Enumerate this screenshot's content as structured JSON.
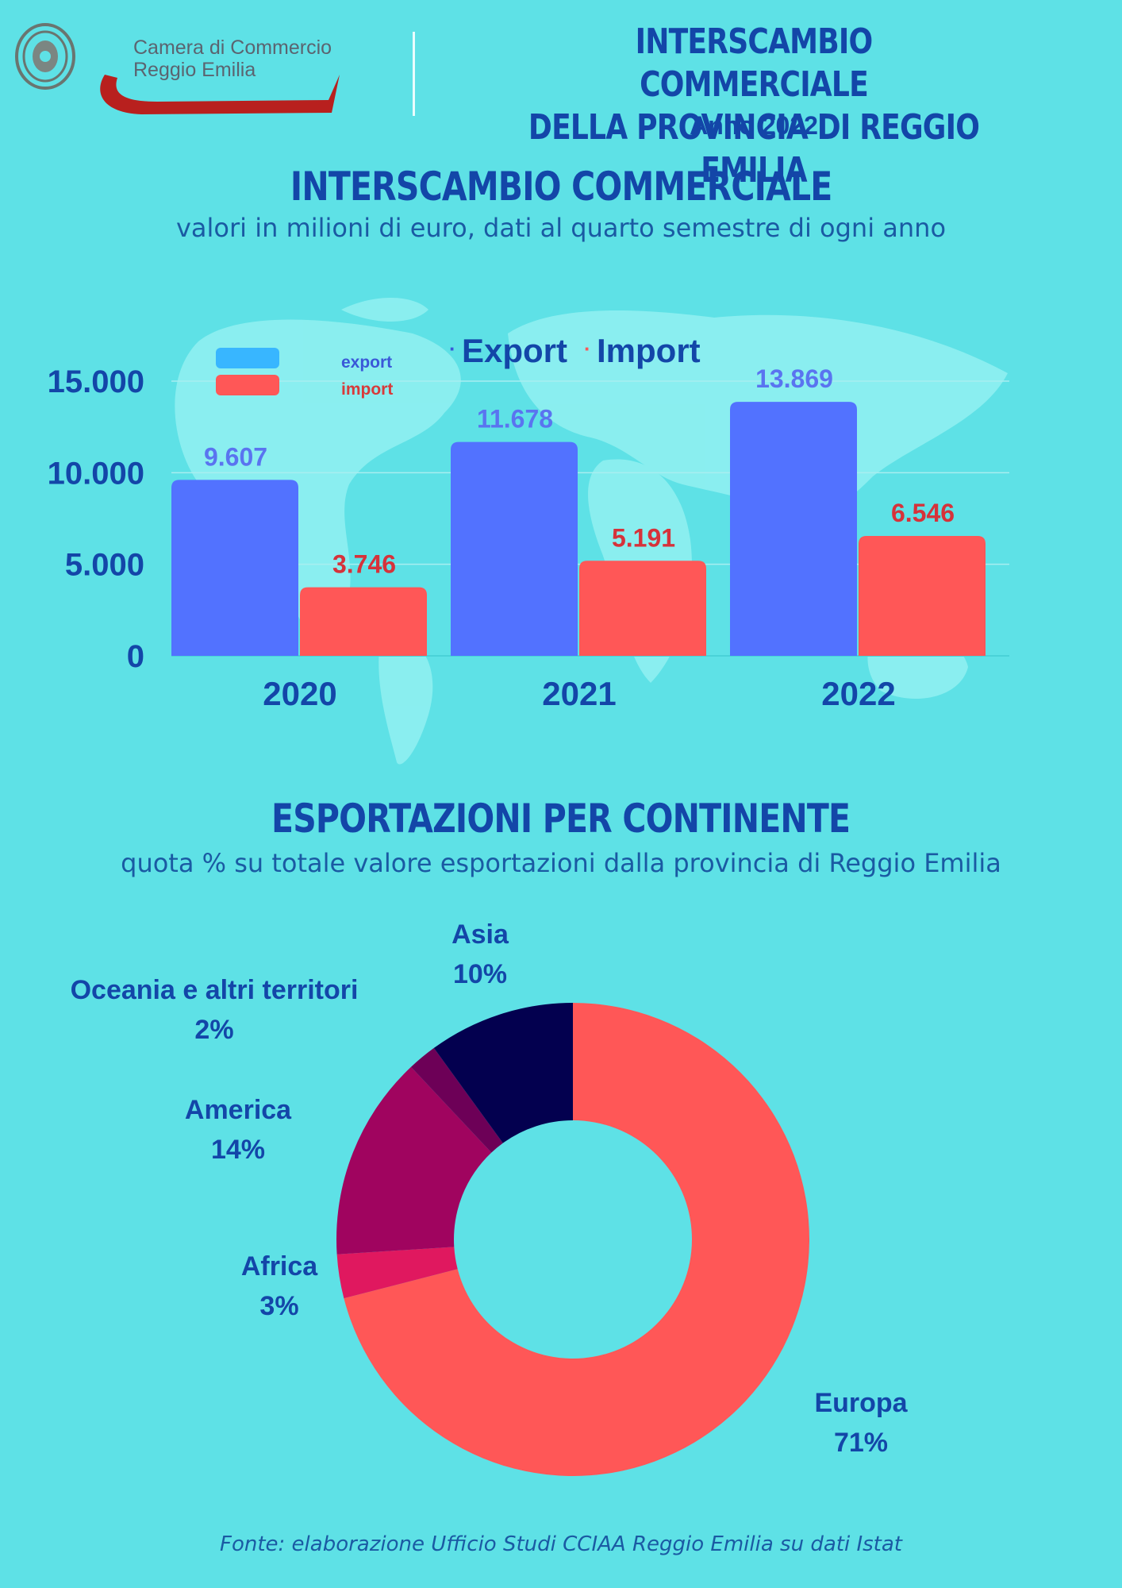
{
  "header": {
    "logo_line1": "Camera di Commercio",
    "logo_line2": "Reggio Emilia",
    "title_line1": "INTERSCAMBIO COMMERCIALE",
    "title_line2": "DELLA PROVINCIA DI REGGIO EMILIA",
    "year": "Anno 2022"
  },
  "section1": {
    "title": "INTERSCAMBIO COMMERCIALE",
    "subtitle": "valori in milioni di euro, dati al quarto semestre di ogni anno"
  },
  "section2": {
    "title": "ESPORTAZIONI PER CONTINENTE",
    "subtitle": "quota % su totale valore esportazioni dalla provincia di Reggio Emilia"
  },
  "footer": "Fonte: elaborazione Ufficio Studi CCIAA Reggio Emilia su dati Istat",
  "colors": {
    "background": "#5ee1e6",
    "export": "#5272ff",
    "import": "#ff5757",
    "text_dark": "#1346a8"
  },
  "chart_data": [
    {
      "type": "bar",
      "categories": [
        "2020",
        "2021",
        "2022"
      ],
      "series": [
        {
          "name": "Export",
          "values": [
            9607,
            11678,
            13869
          ],
          "labels": [
            "9.607",
            "11.678",
            "13.869"
          ],
          "color": "#5272ff"
        },
        {
          "name": "Import",
          "values": [
            3746,
            5191,
            6546
          ],
          "labels": [
            "3.746",
            "5.191",
            "6.546"
          ],
          "color": "#ff5757"
        }
      ],
      "legend_small": [
        "export",
        "import"
      ],
      "legend_title": [
        "Export",
        "Import"
      ],
      "ylim": [
        0,
        15000
      ],
      "yticks": [
        0,
        5000,
        10000,
        15000
      ],
      "ytick_labels": [
        "0",
        "5.000",
        "10.000",
        "15.000"
      ],
      "grid": true
    },
    {
      "type": "pie",
      "slices": [
        {
          "name": "Europa",
          "value": 71,
          "label": "71%",
          "color": "#ff5757"
        },
        {
          "name": "Africa",
          "value": 3,
          "label": "3%",
          "color": "#e0185f"
        },
        {
          "name": "America",
          "value": 14,
          "label": "14%",
          "color": "#a0045f"
        },
        {
          "name": "Oceania e altri territori",
          "value": 2,
          "label": "2%",
          "color": "#6d0057"
        },
        {
          "name": "Asia",
          "value": 10,
          "label": "10%",
          "color": "#03004f"
        }
      ]
    }
  ]
}
